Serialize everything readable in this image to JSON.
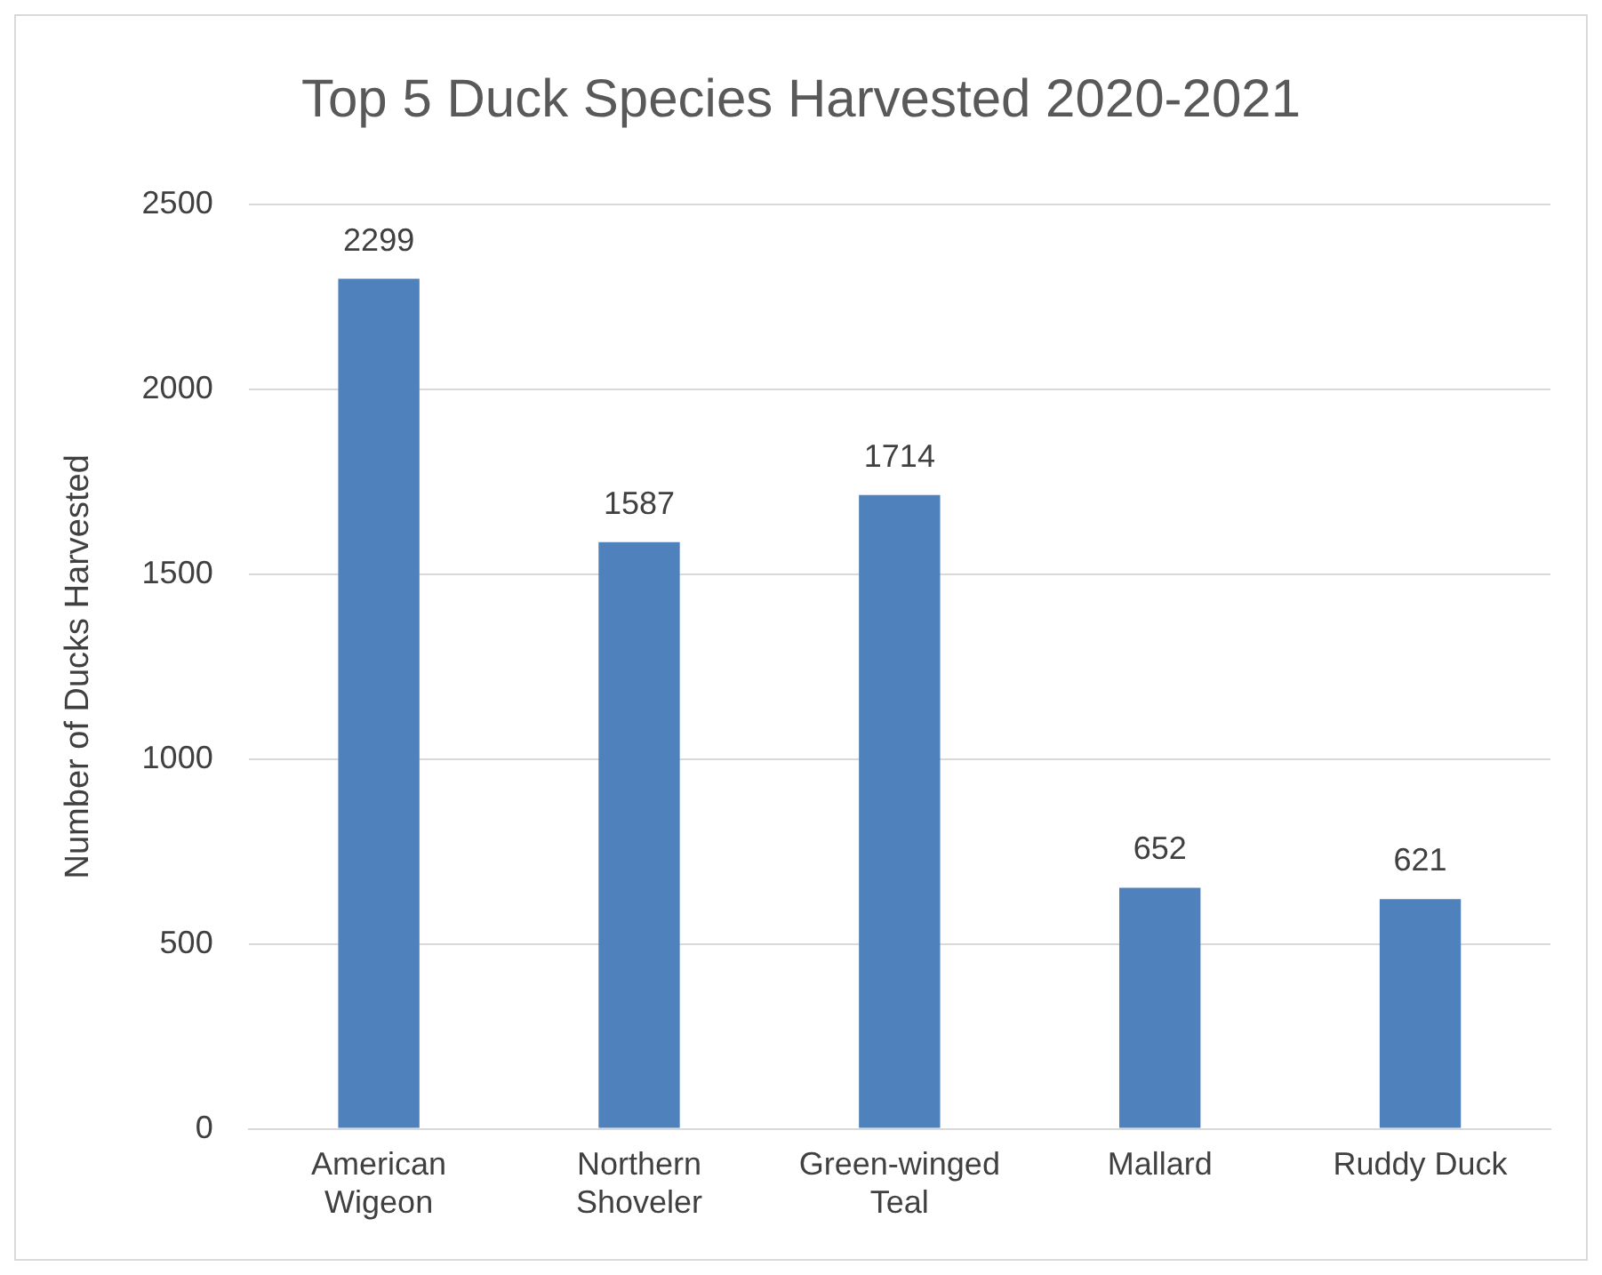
{
  "chart_data": {
    "type": "bar",
    "title": "Top 5 Duck Species Harvested 2020-2021",
    "ylabel": "Number of Ducks Harvested",
    "categories": [
      "American Wigeon",
      "Northern Shoveler",
      "Green-winged Teal",
      "Mallard",
      "Ruddy Duck"
    ],
    "values": [
      2299,
      1587,
      1714,
      652,
      621
    ],
    "color": "#4f81bd",
    "ylim": [
      0,
      2500
    ],
    "yticks": [
      0,
      500,
      1000,
      1500,
      2000,
      2500
    ],
    "grid": "y",
    "data_labels": true
  }
}
